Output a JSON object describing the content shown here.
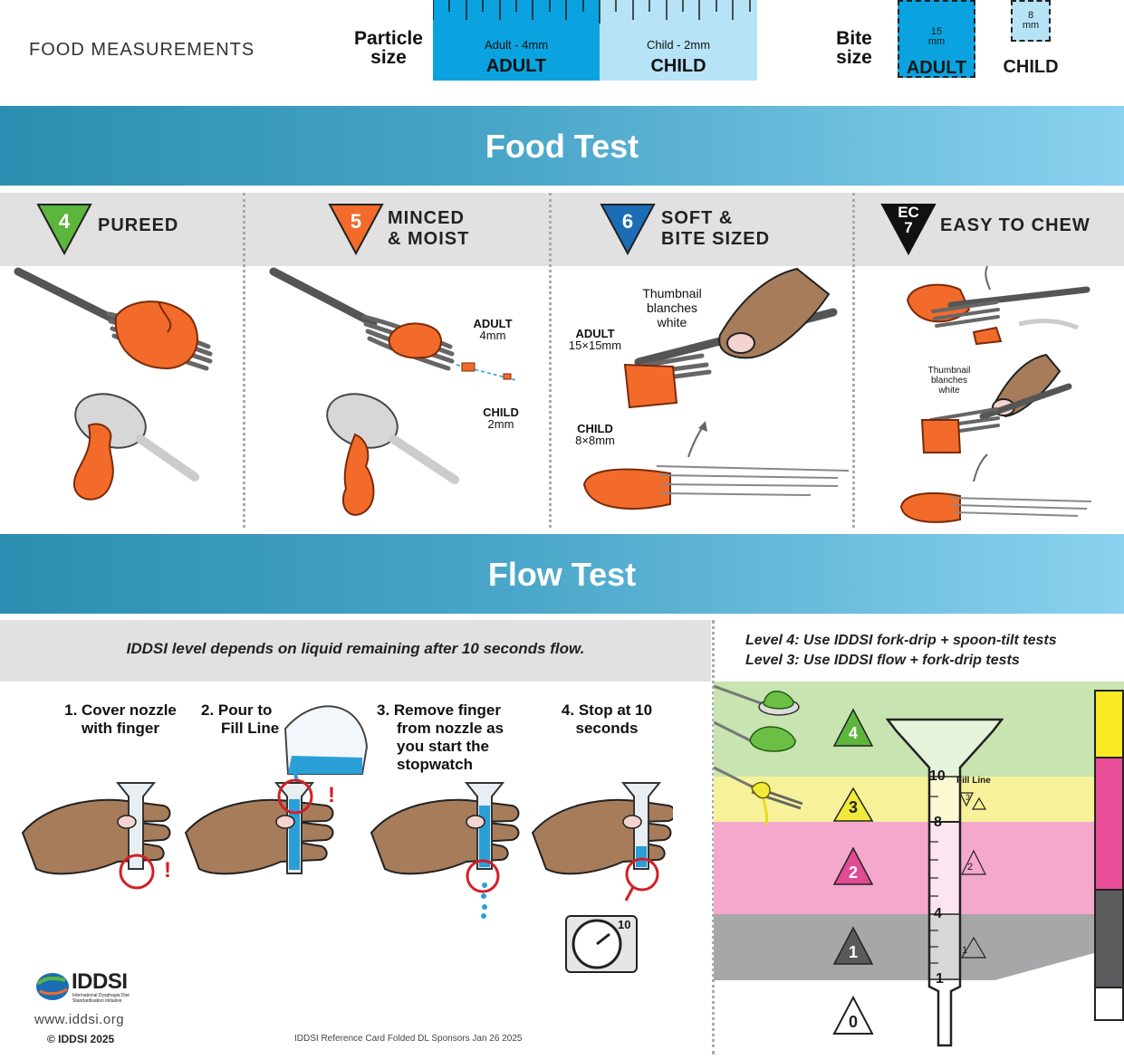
{
  "header": {
    "title": "FOOD MEASUREMENTS",
    "particle_label_1": "Particle",
    "particle_label_2": "size",
    "ruler_adult_small": "Adult - 4mm",
    "ruler_adult_big": "ADULT",
    "ruler_child_small": "Child - 2mm",
    "ruler_child_big": "CHILD",
    "bite_label_1": "Bite",
    "bite_label_2": "size",
    "bite_adult_num": "15",
    "bite_adult_unit": "mm",
    "bite_adult_label": "ADULT",
    "bite_child_num": "8",
    "bite_child_unit": "mm",
    "bite_child_label": "CHILD"
  },
  "food_test": {
    "title": "Food Test",
    "levels": [
      {
        "badge": "4",
        "name_1": "PUREED",
        "name_2": "",
        "color": "#5cb63c"
      },
      {
        "badge": "5",
        "name_1": "MINCED",
        "name_2": "& MOIST",
        "color": "#f26b2a"
      },
      {
        "badge": "6",
        "name_1": "SOFT &",
        "name_2": "BITE SIZED",
        "color": "#1b6db5"
      },
      {
        "badge_1": "EC",
        "badge_2": "7",
        "name_1": "EASY TO CHEW",
        "name_2": "",
        "color": "#111111"
      }
    ],
    "minced_adult": "ADULT",
    "minced_adult_mm": "4mm",
    "minced_child": "CHILD",
    "minced_child_mm": "2mm",
    "soft_thumb_1": "Thumbnail",
    "soft_thumb_2": "blanches",
    "soft_thumb_3": "white",
    "soft_adult": "ADULT",
    "soft_adult_mm": "15×15mm",
    "soft_child": "CHILD",
    "soft_child_mm": "8×8mm",
    "ec_thumb_1": "Thumbnail",
    "ec_thumb_2": "blanches",
    "ec_thumb_3": "white"
  },
  "flow_test": {
    "title": "Flow Test",
    "note": "IDDSI level depends on liquid remaining after 10 seconds flow.",
    "level_note_1": "Level 4: Use IDDSI fork-drip + spoon-tilt tests",
    "level_note_2": "Level 3: Use IDDSI flow + fork-drip tests",
    "steps": [
      {
        "l1": "1. Cover nozzle",
        "l2": "with finger",
        "l3": "",
        "l4": ""
      },
      {
        "l1": "2. Pour to",
        "l2": "Fill Line",
        "l3": "",
        "l4": ""
      },
      {
        "l1": "3. Remove finger",
        "l2": "from nozzle as",
        "l3": "you start the",
        "l4": "stopwatch"
      },
      {
        "l1": "4. Stop at 10",
        "l2": "seconds",
        "l3": "",
        "l4": ""
      }
    ],
    "timer_value": "10",
    "exclaim": "!",
    "syringe_fill_line": "Fill Line",
    "syringe_marks": [
      "10",
      "8",
      "4",
      "1"
    ],
    "level_badges": [
      "4",
      "3",
      "2",
      "1",
      "0"
    ],
    "band_colors": {
      "l4": "#c8e4b0",
      "l3": "#f7f29a",
      "l2": "#f4a9cc",
      "l1": "#a7a7a9"
    }
  },
  "footer": {
    "logo_text": "IDDSI",
    "logo_sub_1": "International Dysphagia Diet",
    "logo_sub_2": "Standardisation Initiative",
    "url": "www.iddsi.org",
    "copyright": "© IDDSI 2025",
    "card_note": "IDDSI Reference Card Folded DL Sponsors Jan 26 2025"
  }
}
